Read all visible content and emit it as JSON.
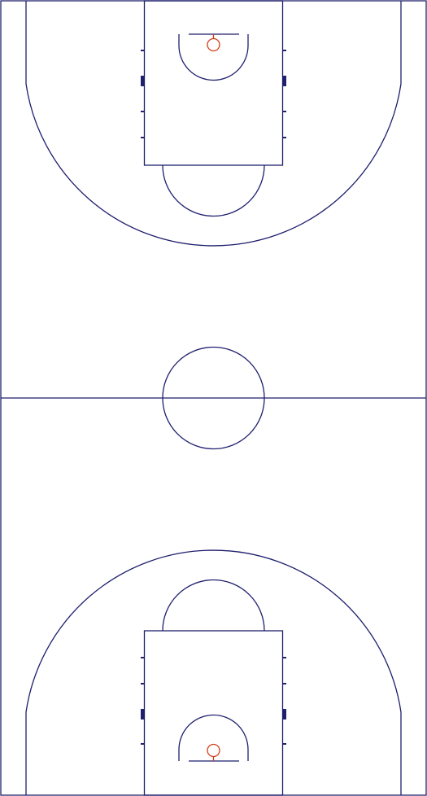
{
  "court": {
    "colors": {
      "background": "#ffffff",
      "lines": "#1f1f6e",
      "rim": "#d23c1a"
    }
  }
}
